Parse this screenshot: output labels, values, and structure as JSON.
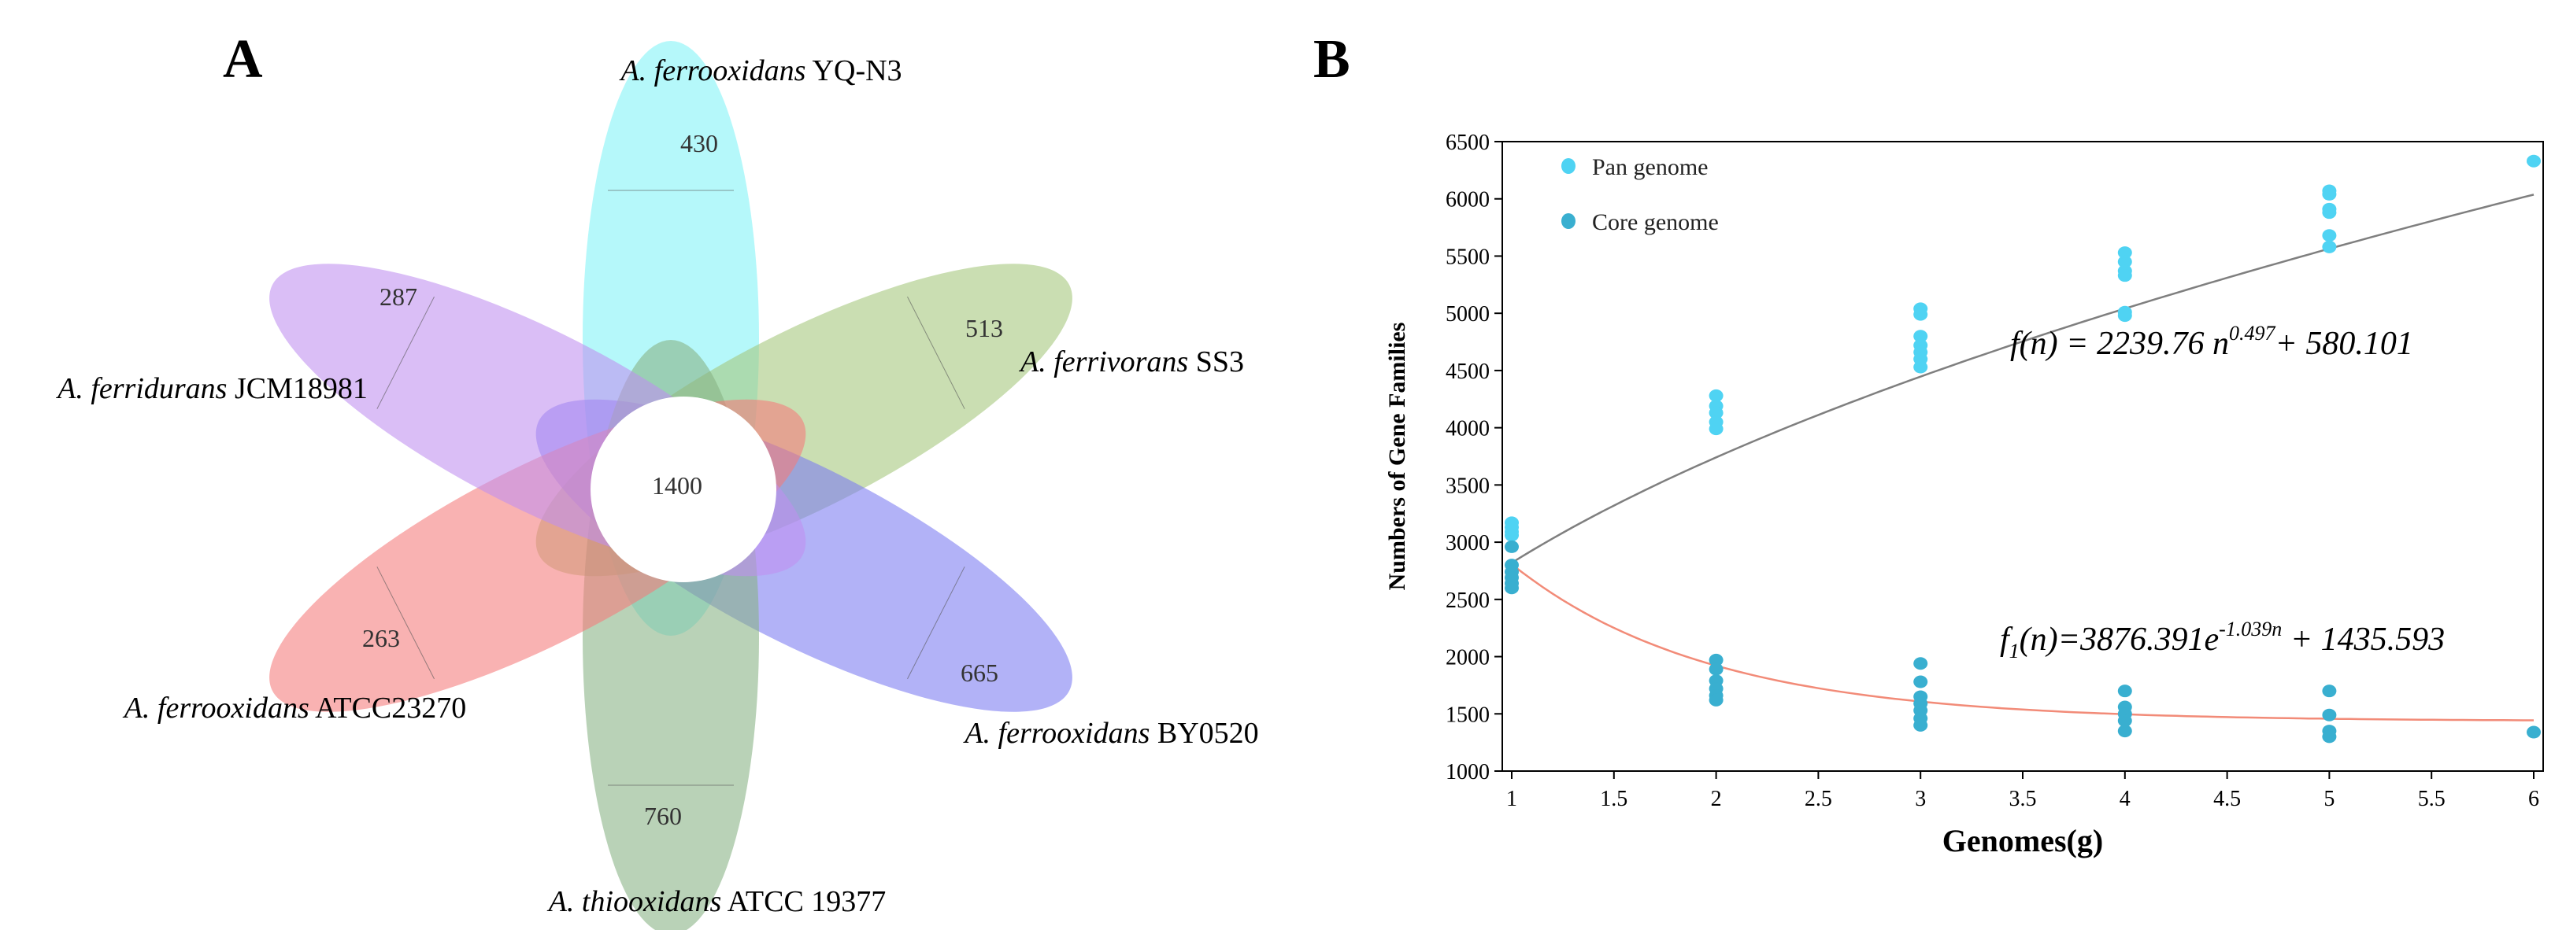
{
  "panel_a": {
    "label": "A",
    "center_value": "1400",
    "petals": [
      {
        "genus": "A. ferrooxidans",
        "strain": " YQ-N3",
        "value": "430",
        "color": "#7ff3f6"
      },
      {
        "genus": "A. ferrivorans",
        "strain": " SS3",
        "value": "513",
        "color": "#a3c77a"
      },
      {
        "genus": "A. ferrooxidans",
        "strain": " BY0520",
        "value": "665",
        "color": "#7b7bf2"
      },
      {
        "genus": "A. thiooxidans",
        "strain": " ATCC 19377",
        "value": "760",
        "color": "#86b283"
      },
      {
        "genus": "A. ferrooxidans",
        "strain": " ATCC23270",
        "value": "263",
        "color": "#f47a7a"
      },
      {
        "genus": "A. ferridurans",
        "strain": " JCM18981",
        "value": "287",
        "color": "#c08ff0"
      }
    ]
  },
  "panel_b": {
    "label": "B",
    "formula_pan": {
      "lhs": "f(n)",
      "body": " = 2239.76 n",
      "exp": "0.497",
      "tail": "+ 580.101"
    },
    "formula_core": {
      "f": "f",
      "sub": "1",
      "n": "(n)=3876.391e",
      "exp": "-1.039n",
      "tail": " + 1435.593"
    }
  },
  "chart_data": {
    "type": "scatter",
    "xlabel": "Genomes(g)",
    "ylabel": "Numbers of Gene Families",
    "xlim": [
      1,
      6
    ],
    "ylim": [
      1000,
      6500
    ],
    "xticks": [
      1,
      1.5,
      2,
      2.5,
      3,
      3.5,
      4,
      4.5,
      5,
      5.5,
      6
    ],
    "yticks": [
      1000,
      1500,
      2000,
      2500,
      3000,
      3500,
      4000,
      4500,
      5000,
      5500,
      6000,
      6500
    ],
    "legend_position": "top-left",
    "series": [
      {
        "name": "Pan genome",
        "color": "#4fd3f3",
        "points": [
          [
            1,
            3170
          ],
          [
            1,
            3130
          ],
          [
            1,
            3090
          ],
          [
            1,
            3060
          ],
          [
            2,
            4280
          ],
          [
            2,
            4190
          ],
          [
            2,
            4130
          ],
          [
            2,
            4050
          ],
          [
            2,
            3990
          ],
          [
            3,
            5040
          ],
          [
            3,
            4990
          ],
          [
            3,
            4800
          ],
          [
            3,
            4720
          ],
          [
            3,
            4660
          ],
          [
            3,
            4600
          ],
          [
            3,
            4530
          ],
          [
            4,
            5530
          ],
          [
            4,
            5450
          ],
          [
            4,
            5370
          ],
          [
            4,
            5330
          ],
          [
            4,
            5010
          ],
          [
            4,
            4980
          ],
          [
            5,
            6070
          ],
          [
            5,
            6040
          ],
          [
            5,
            5910
          ],
          [
            5,
            5880
          ],
          [
            5,
            5680
          ],
          [
            5,
            5580
          ],
          [
            6,
            6330
          ]
        ]
      },
      {
        "name": "Core genome",
        "color": "#39afd0",
        "points": [
          [
            1,
            2960
          ],
          [
            1,
            2800
          ],
          [
            1,
            2740
          ],
          [
            1,
            2690
          ],
          [
            1,
            2640
          ],
          [
            1,
            2600
          ],
          [
            2,
            1970
          ],
          [
            2,
            1890
          ],
          [
            2,
            1790
          ],
          [
            2,
            1720
          ],
          [
            2,
            1660
          ],
          [
            2,
            1620
          ],
          [
            3,
            1940
          ],
          [
            3,
            1780
          ],
          [
            3,
            1650
          ],
          [
            3,
            1590
          ],
          [
            3,
            1530
          ],
          [
            3,
            1460
          ],
          [
            3,
            1400
          ],
          [
            4,
            1700
          ],
          [
            4,
            1560
          ],
          [
            4,
            1500
          ],
          [
            4,
            1440
          ],
          [
            4,
            1350
          ],
          [
            5,
            1700
          ],
          [
            5,
            1490
          ],
          [
            5,
            1350
          ],
          [
            5,
            1300
          ],
          [
            6,
            1340
          ]
        ]
      }
    ],
    "fits": [
      {
        "name": "pan-fit",
        "a": 2239.76,
        "b": 0.497,
        "c": 580.101,
        "form": "power",
        "color": "#7f7f7f"
      },
      {
        "name": "core-fit",
        "a": 3876.391,
        "b": -1.039,
        "c": 1435.593,
        "form": "exp",
        "color": "#f28b78"
      }
    ]
  }
}
